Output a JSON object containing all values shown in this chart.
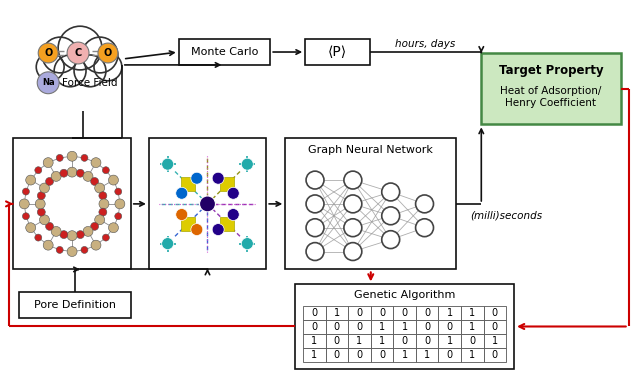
{
  "bg_color": "#ffffff",
  "arrow_color": "#111111",
  "red_arrow_color": "#cc0000",
  "o_color": "#f5a020",
  "c_color": "#f0b0b0",
  "na_color": "#aaaadd",
  "target_box_fill": "#cce8c0",
  "target_box_edge": "#448844",
  "monte_carlo_label": "Monte Carlo",
  "p_label": "⟨P⟩",
  "target_label_title": "Target Property",
  "target_label_sub1": "Heat of Adsorption/",
  "target_label_sub2": "Henry Coefficient",
  "gnn_label": "Graph Neural Network",
  "ga_label": "Genetic Algorithm",
  "pore_label": "Pore Definition",
  "force_field_label": "Force Field",
  "hours_days_label": "hours, days",
  "milli_seconds_label": "(milli)seconds",
  "binary_grid": [
    [
      "0",
      "1",
      "0",
      "0",
      "0",
      "0",
      "1",
      "1",
      "0"
    ],
    [
      "0",
      "0",
      "0",
      "1",
      "1",
      "0",
      "0",
      "1",
      "0"
    ],
    [
      "1",
      "0",
      "1",
      "1",
      "0",
      "0",
      "1",
      "0",
      "1"
    ],
    [
      "1",
      "0",
      "0",
      "0",
      "1",
      "1",
      "0",
      "1",
      "0"
    ]
  ]
}
